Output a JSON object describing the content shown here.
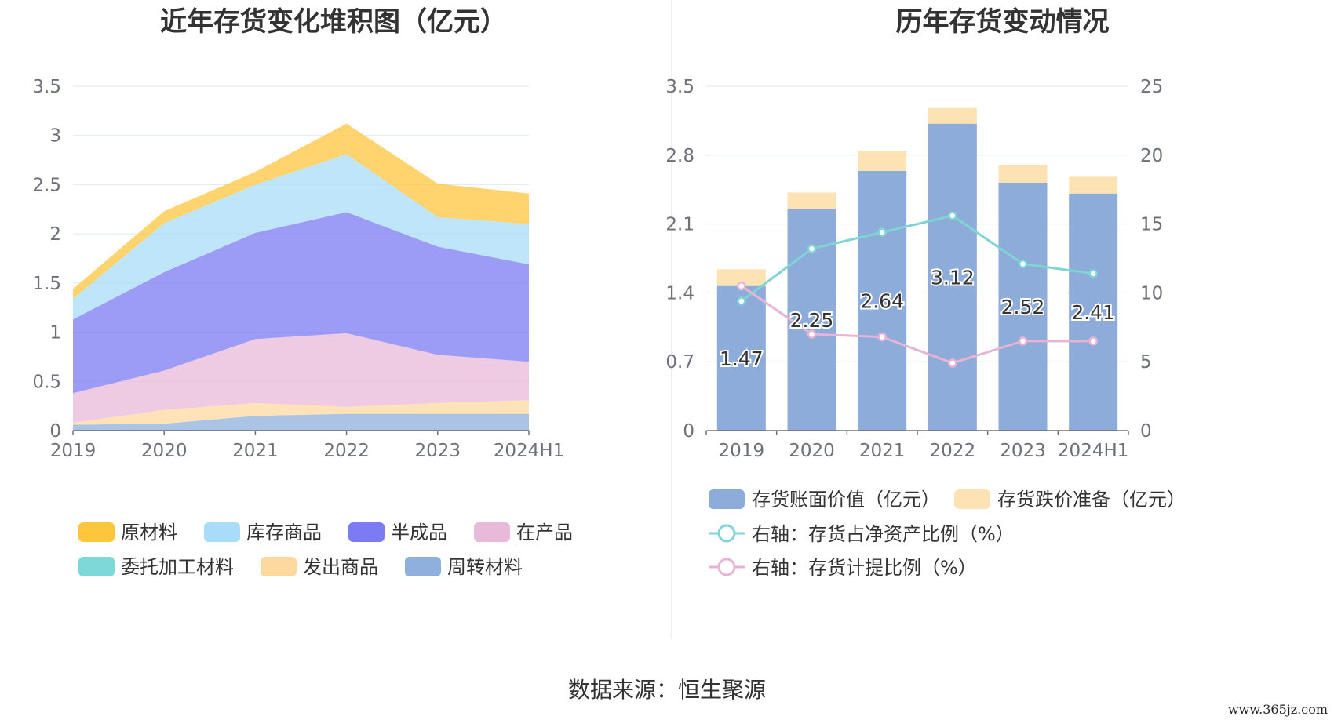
{
  "source": "数据来源：恒生聚源",
  "watermark": "www.365jz.com",
  "chart_data": [
    {
      "type": "area",
      "stacked": true,
      "title": "近年存货变化堆积图（亿元）",
      "categories": [
        "2019",
        "2020",
        "2021",
        "2022",
        "2023",
        "2024H1"
      ],
      "ylim": [
        0,
        3.5
      ],
      "yticks": [
        "0",
        "0.5",
        "1",
        "1.5",
        "2",
        "2.5",
        "3",
        "3.5"
      ],
      "grid": true,
      "legend_position": "bottom",
      "series": [
        {
          "name": "周转材料",
          "color": "#8fb0dc",
          "values": [
            0.06,
            0.07,
            0.15,
            0.17,
            0.17,
            0.17
          ]
        },
        {
          "name": "发出商品",
          "color": "#fdd9a0",
          "values": [
            0.02,
            0.14,
            0.13,
            0.07,
            0.11,
            0.14
          ]
        },
        {
          "name": "委托加工材料",
          "color": "#7fd8d8",
          "values": [
            0,
            0,
            0,
            0,
            0,
            0
          ]
        },
        {
          "name": "在产品",
          "color": "#e8b9d8",
          "values": [
            0.3,
            0.4,
            0.65,
            0.75,
            0.49,
            0.39
          ]
        },
        {
          "name": "半成品",
          "color": "#7b7bf3",
          "values": [
            0.75,
            1.0,
            1.08,
            1.23,
            1.1,
            0.99
          ]
        },
        {
          "name": "库存商品",
          "color": "#a8dcf8",
          "values": [
            0.21,
            0.5,
            0.49,
            0.59,
            0.3,
            0.41
          ]
        },
        {
          "name": "原材料",
          "color": "#ffc53d",
          "values": [
            0.1,
            0.12,
            0.13,
            0.31,
            0.34,
            0.31
          ]
        }
      ],
      "legend_order": [
        "原材料",
        "库存商品",
        "半成品",
        "在产品",
        "委托加工材料",
        "发出商品",
        "周转材料"
      ]
    },
    {
      "type": "bar",
      "stacked": true,
      "title": "历年存货变动情况",
      "categories": [
        "2019",
        "2020",
        "2021",
        "2022",
        "2023",
        "2024H1"
      ],
      "ylim": [
        0,
        3.5
      ],
      "yticks": [
        "0",
        "0.7",
        "1.4",
        "2.1",
        "2.8",
        "3.5"
      ],
      "y2lim": [
        0,
        25
      ],
      "y2ticks": [
        "0",
        "5",
        "10",
        "15",
        "20",
        "25"
      ],
      "grid": true,
      "legend_position": "bottom",
      "series": [
        {
          "name": "存货账面价值（亿元）",
          "color": "#8dacd9",
          "values": [
            1.47,
            2.25,
            2.64,
            3.12,
            2.52,
            2.41
          ],
          "labels": [
            "1.47",
            "2.25",
            "2.64",
            "3.12",
            "2.52",
            "2.41"
          ]
        },
        {
          "name": "存货跌价准备（亿元）",
          "color": "#fde3b4",
          "values": [
            0.17,
            0.17,
            0.2,
            0.16,
            0.18,
            0.17
          ]
        }
      ],
      "line_series": [
        {
          "name": "右轴：存货占净资产比例（%）",
          "color": "#7fd4d4",
          "axis": "right",
          "values": [
            9.4,
            13.2,
            14.4,
            15.6,
            12.1,
            11.4
          ]
        },
        {
          "name": "右轴：存货计提比例（%）",
          "color": "#e8b4d6",
          "axis": "right",
          "values": [
            10.5,
            7.0,
            6.8,
            4.9,
            6.5,
            6.5
          ]
        }
      ]
    }
  ]
}
